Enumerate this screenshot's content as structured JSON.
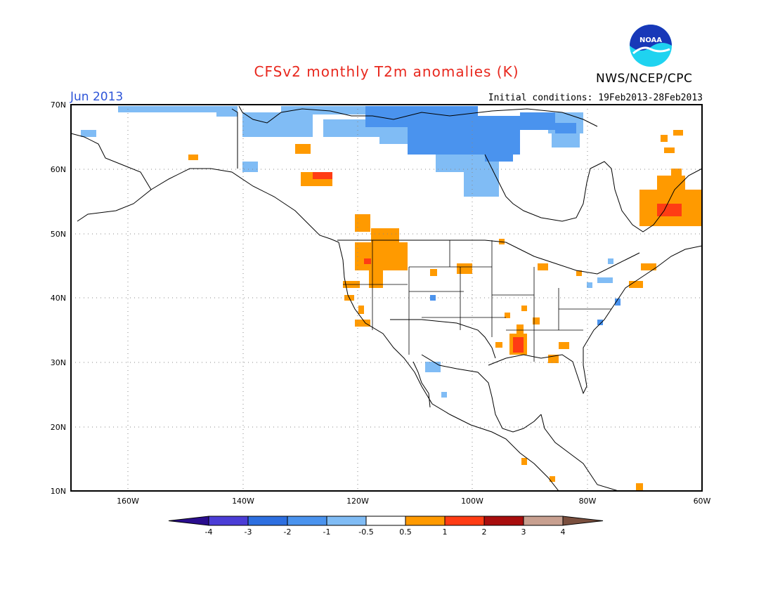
{
  "header": {
    "title": "CFSv2 monthly T2m anomalies (K)",
    "agency": "NWS/NCEP/CPC",
    "logo_text": "NOAA",
    "month": "Jun 2013",
    "initial_conditions": "Initial conditions: 19Feb2013-28Feb2013"
  },
  "axes": {
    "lat_labels": [
      "70N",
      "60N",
      "50N",
      "40N",
      "30N",
      "20N",
      "10N"
    ],
    "lat_values": [
      70,
      60,
      50,
      40,
      30,
      20,
      10
    ],
    "lon_labels": [
      "160W",
      "140W",
      "120W",
      "100W",
      "80W",
      "60W"
    ],
    "lon_values": [
      -160,
      -140,
      -120,
      -100,
      -80,
      -60
    ],
    "lon_range": [
      -170,
      -60
    ],
    "lat_range": [
      10,
      70
    ]
  },
  "colorbar": {
    "labels": [
      "-4",
      "-3",
      "-2",
      "-1",
      "-0.5",
      "0.5",
      "1",
      "2",
      "3",
      "4"
    ],
    "colors": [
      "#2a0d8e",
      "#4b3dd6",
      "#2d6fe0",
      "#4a93ee",
      "#80bcf5",
      "#ffffff",
      "#ff9a00",
      "#ff3c14",
      "#a80d0d",
      "#c8a090",
      "#7a4f3e"
    ]
  },
  "colors": {
    "coast": "#000000",
    "grid": "#888888"
  }
}
